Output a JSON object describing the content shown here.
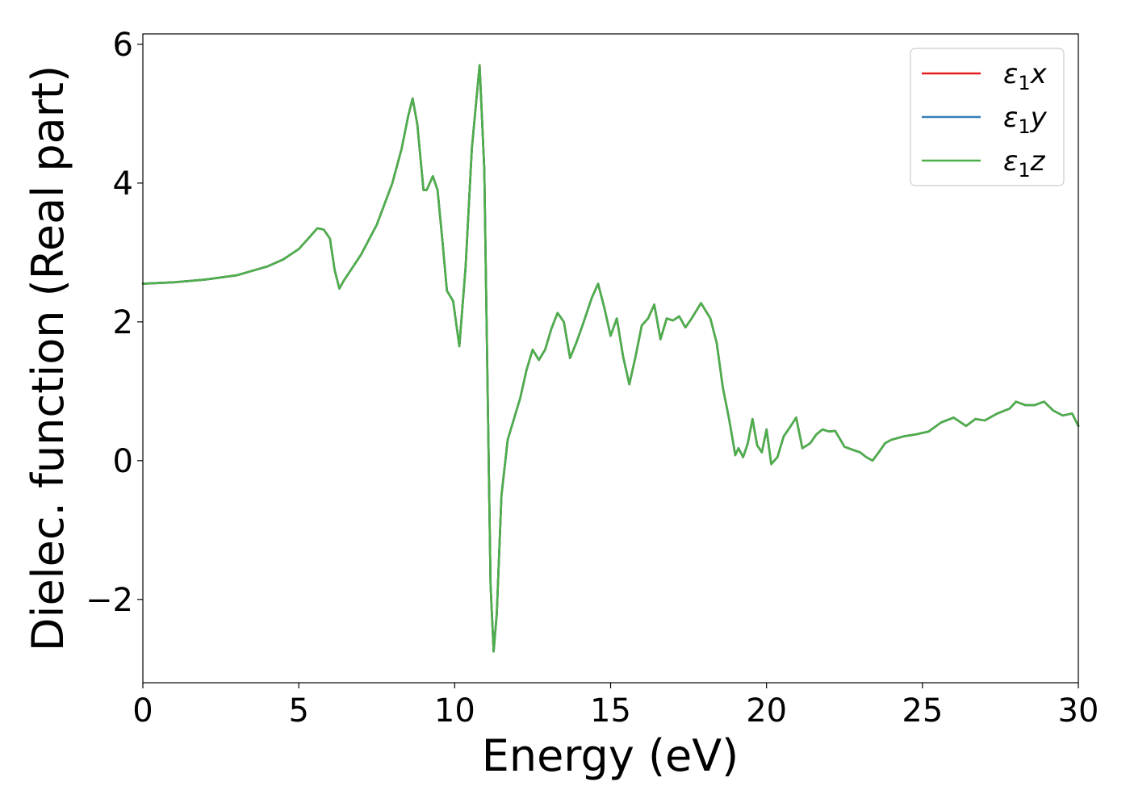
{
  "chart_data": {
    "type": "line",
    "xlabel": "Energy (eV)",
    "ylabel": "Dielec. function (Real part)",
    "xlim": [
      0,
      30
    ],
    "ylim": [
      -3.2,
      6.15
    ],
    "xticks": [
      0,
      5,
      10,
      15,
      20,
      25,
      30
    ],
    "xtick_labels": [
      "0",
      "5",
      "10",
      "15",
      "20",
      "25",
      "30"
    ],
    "yticks": [
      -2,
      0,
      2,
      4,
      6
    ],
    "ytick_labels": [
      "−2",
      "0",
      "2",
      "4",
      "6"
    ],
    "grid": false,
    "legend_position": "top-right",
    "series": [
      {
        "name": "ε₁x",
        "name_base": "ε",
        "name_sub": "1",
        "name_suffix": "x",
        "color": "#e41a1c",
        "x": [
          0,
          1,
          2,
          3,
          4,
          4.5,
          5,
          5.3,
          5.6,
          5.8,
          6.0,
          6.15,
          6.3,
          6.45,
          6.6,
          7,
          7.5,
          8.0,
          8.3,
          8.5,
          8.65,
          8.8,
          9.0,
          9.1,
          9.3,
          9.45,
          9.6,
          9.75,
          9.95,
          10.15,
          10.35,
          10.55,
          10.8,
          10.95,
          11.05,
          11.15,
          11.25,
          11.35,
          11.5,
          11.7,
          11.9,
          12.1,
          12.3,
          12.5,
          12.7,
          12.9,
          13.1,
          13.3,
          13.5,
          13.7,
          13.9,
          14.1,
          14.4,
          14.6,
          14.8,
          15.0,
          15.2,
          15.4,
          15.6,
          15.8,
          16.0,
          16.2,
          16.4,
          16.6,
          16.8,
          17.0,
          17.2,
          17.4,
          17.6,
          17.9,
          18.2,
          18.4,
          18.6,
          18.8,
          19.0,
          19.1,
          19.25,
          19.4,
          19.55,
          19.7,
          19.85,
          20.0,
          20.15,
          20.35,
          20.55,
          20.75,
          20.95,
          21.15,
          21.4,
          21.6,
          21.8,
          22.0,
          22.2,
          22.5,
          22.8,
          23.0,
          23.2,
          23.4,
          23.6,
          23.8,
          24.0,
          24.4,
          24.8,
          25.2,
          25.6,
          26.0,
          26.4,
          26.7,
          27.0,
          27.4,
          27.8,
          28.0,
          28.3,
          28.6,
          28.9,
          29.2,
          29.5,
          29.8,
          30.0
        ],
        "y": [
          2.55,
          2.57,
          2.61,
          2.67,
          2.8,
          2.9,
          3.05,
          3.2,
          3.35,
          3.33,
          3.2,
          2.75,
          2.48,
          2.6,
          2.7,
          2.97,
          3.4,
          4.0,
          4.5,
          4.95,
          5.22,
          4.85,
          3.9,
          3.9,
          4.1,
          3.9,
          3.2,
          2.45,
          2.3,
          1.65,
          2.8,
          4.5,
          5.7,
          4.2,
          1.2,
          -1.8,
          -2.75,
          -2.2,
          -0.5,
          0.3,
          0.6,
          0.9,
          1.3,
          1.6,
          1.45,
          1.6,
          1.9,
          2.13,
          2.0,
          1.48,
          1.7,
          1.95,
          2.35,
          2.55,
          2.2,
          1.8,
          2.05,
          1.5,
          1.1,
          1.5,
          1.95,
          2.05,
          2.25,
          1.75,
          2.05,
          2.02,
          2.08,
          1.92,
          2.05,
          2.27,
          2.05,
          1.7,
          1.05,
          0.6,
          0.08,
          0.18,
          0.05,
          0.25,
          0.6,
          0.22,
          0.12,
          0.45,
          -0.05,
          0.05,
          0.35,
          0.48,
          0.62,
          0.18,
          0.25,
          0.38,
          0.45,
          0.42,
          0.43,
          0.2,
          0.15,
          0.12,
          0.05,
          0.0,
          0.12,
          0.25,
          0.3,
          0.35,
          0.38,
          0.42,
          0.55,
          0.62,
          0.5,
          0.6,
          0.58,
          0.68,
          0.75,
          0.85,
          0.8,
          0.8,
          0.85,
          0.72,
          0.65,
          0.68,
          0.5
        ]
      },
      {
        "name": "ε₁y",
        "name_base": "ε",
        "name_sub": "1",
        "name_suffix": "y",
        "color": "#377eb8",
        "x": [
          0,
          1,
          2,
          3,
          4,
          4.5,
          5,
          5.3,
          5.6,
          5.8,
          6.0,
          6.15,
          6.3,
          6.45,
          6.6,
          7,
          7.5,
          8.0,
          8.3,
          8.5,
          8.65,
          8.8,
          9.0,
          9.1,
          9.3,
          9.45,
          9.6,
          9.75,
          9.95,
          10.15,
          10.35,
          10.55,
          10.8,
          10.95,
          11.05,
          11.15,
          11.25,
          11.35,
          11.5,
          11.7,
          11.9,
          12.1,
          12.3,
          12.5,
          12.7,
          12.9,
          13.1,
          13.3,
          13.5,
          13.7,
          13.9,
          14.1,
          14.4,
          14.6,
          14.8,
          15.0,
          15.2,
          15.4,
          15.6,
          15.8,
          16.0,
          16.2,
          16.4,
          16.6,
          16.8,
          17.0,
          17.2,
          17.4,
          17.6,
          17.9,
          18.2,
          18.4,
          18.6,
          18.8,
          19.0,
          19.1,
          19.25,
          19.4,
          19.55,
          19.7,
          19.85,
          20.0,
          20.15,
          20.35,
          20.55,
          20.75,
          20.95,
          21.15,
          21.4,
          21.6,
          21.8,
          22.0,
          22.2,
          22.5,
          22.8,
          23.0,
          23.2,
          23.4,
          23.6,
          23.8,
          24.0,
          24.4,
          24.8,
          25.2,
          25.6,
          26.0,
          26.4,
          26.7,
          27.0,
          27.4,
          27.8,
          28.0,
          28.3,
          28.6,
          28.9,
          29.2,
          29.5,
          29.8,
          30.0
        ],
        "y": [
          2.55,
          2.57,
          2.61,
          2.67,
          2.8,
          2.9,
          3.05,
          3.2,
          3.35,
          3.33,
          3.2,
          2.75,
          2.48,
          2.6,
          2.7,
          2.97,
          3.4,
          4.0,
          4.5,
          4.95,
          5.22,
          4.85,
          3.9,
          3.9,
          4.1,
          3.9,
          3.2,
          2.45,
          2.3,
          1.65,
          2.8,
          4.5,
          5.7,
          4.2,
          1.2,
          -1.8,
          -2.75,
          -2.2,
          -0.5,
          0.3,
          0.6,
          0.9,
          1.3,
          1.6,
          1.45,
          1.6,
          1.9,
          2.13,
          2.0,
          1.48,
          1.7,
          1.95,
          2.35,
          2.55,
          2.2,
          1.8,
          2.05,
          1.5,
          1.1,
          1.5,
          1.95,
          2.05,
          2.25,
          1.75,
          2.05,
          2.02,
          2.08,
          1.92,
          2.05,
          2.27,
          2.05,
          1.7,
          1.05,
          0.6,
          0.08,
          0.18,
          0.05,
          0.25,
          0.6,
          0.22,
          0.12,
          0.45,
          -0.05,
          0.05,
          0.35,
          0.48,
          0.62,
          0.18,
          0.25,
          0.38,
          0.45,
          0.42,
          0.43,
          0.2,
          0.15,
          0.12,
          0.05,
          0.0,
          0.12,
          0.25,
          0.3,
          0.35,
          0.38,
          0.42,
          0.55,
          0.62,
          0.5,
          0.6,
          0.58,
          0.68,
          0.75,
          0.85,
          0.8,
          0.8,
          0.85,
          0.72,
          0.65,
          0.68,
          0.5
        ]
      },
      {
        "name": "ε₁z",
        "name_base": "ε",
        "name_sub": "1",
        "name_suffix": "z",
        "color": "#4daf4a",
        "x": [
          0,
          1,
          2,
          3,
          4,
          4.5,
          5,
          5.3,
          5.6,
          5.8,
          6.0,
          6.15,
          6.3,
          6.45,
          6.6,
          7,
          7.5,
          8.0,
          8.3,
          8.5,
          8.65,
          8.8,
          9.0,
          9.1,
          9.3,
          9.45,
          9.6,
          9.75,
          9.95,
          10.15,
          10.35,
          10.55,
          10.8,
          10.95,
          11.05,
          11.15,
          11.25,
          11.35,
          11.5,
          11.7,
          11.9,
          12.1,
          12.3,
          12.5,
          12.7,
          12.9,
          13.1,
          13.3,
          13.5,
          13.7,
          13.9,
          14.1,
          14.4,
          14.6,
          14.8,
          15.0,
          15.2,
          15.4,
          15.6,
          15.8,
          16.0,
          16.2,
          16.4,
          16.6,
          16.8,
          17.0,
          17.2,
          17.4,
          17.6,
          17.9,
          18.2,
          18.4,
          18.6,
          18.8,
          19.0,
          19.1,
          19.25,
          19.4,
          19.55,
          19.7,
          19.85,
          20.0,
          20.15,
          20.35,
          20.55,
          20.75,
          20.95,
          21.15,
          21.4,
          21.6,
          21.8,
          22.0,
          22.2,
          22.5,
          22.8,
          23.0,
          23.2,
          23.4,
          23.6,
          23.8,
          24.0,
          24.4,
          24.8,
          25.2,
          25.6,
          26.0,
          26.4,
          26.7,
          27.0,
          27.4,
          27.8,
          28.0,
          28.3,
          28.6,
          28.9,
          29.2,
          29.5,
          29.8,
          30.0
        ],
        "y": [
          2.55,
          2.57,
          2.61,
          2.67,
          2.8,
          2.9,
          3.05,
          3.2,
          3.35,
          3.33,
          3.2,
          2.75,
          2.48,
          2.6,
          2.7,
          2.97,
          3.4,
          4.0,
          4.5,
          4.95,
          5.22,
          4.85,
          3.9,
          3.9,
          4.1,
          3.9,
          3.2,
          2.45,
          2.3,
          1.65,
          2.8,
          4.5,
          5.7,
          4.2,
          1.2,
          -1.8,
          -2.75,
          -2.2,
          -0.5,
          0.3,
          0.6,
          0.9,
          1.3,
          1.6,
          1.45,
          1.6,
          1.9,
          2.13,
          2.0,
          1.48,
          1.7,
          1.95,
          2.35,
          2.55,
          2.2,
          1.8,
          2.05,
          1.5,
          1.1,
          1.5,
          1.95,
          2.05,
          2.25,
          1.75,
          2.05,
          2.02,
          2.08,
          1.92,
          2.05,
          2.27,
          2.05,
          1.7,
          1.05,
          0.6,
          0.08,
          0.18,
          0.05,
          0.25,
          0.6,
          0.22,
          0.12,
          0.45,
          -0.05,
          0.05,
          0.35,
          0.48,
          0.62,
          0.18,
          0.25,
          0.38,
          0.45,
          0.42,
          0.43,
          0.2,
          0.15,
          0.12,
          0.05,
          0.0,
          0.12,
          0.25,
          0.3,
          0.35,
          0.38,
          0.42,
          0.55,
          0.62,
          0.5,
          0.6,
          0.58,
          0.68,
          0.75,
          0.85,
          0.8,
          0.8,
          0.85,
          0.72,
          0.65,
          0.68,
          0.5
        ]
      }
    ]
  }
}
